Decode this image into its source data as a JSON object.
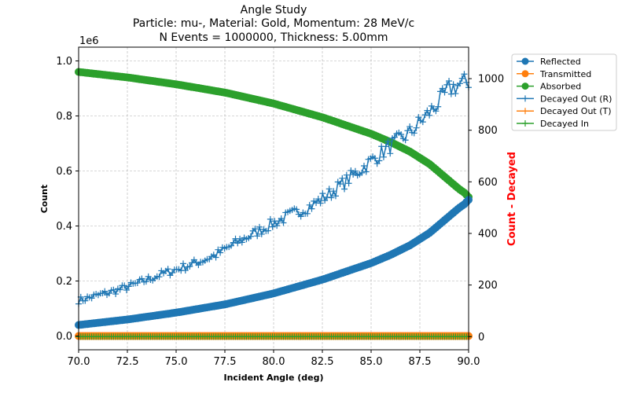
{
  "chart_data": {
    "type": "line",
    "title": "Angle Study",
    "subtitle_lines": [
      "Particle: mu-, Material: Gold, Momentum: 28 MeV/c",
      "N Events = 1000000, Thickness: 5.00mm"
    ],
    "xlabel": "Incident Angle (deg)",
    "ylabel": "Count",
    "y2label": "Count - Decayed",
    "y_offset_text": "1e6",
    "xlim": [
      70.0,
      90.0
    ],
    "ylim": [
      -0.05,
      1.05
    ],
    "y2lim": [
      -51,
      1122
    ],
    "x_ticks": [
      "70.0",
      "72.5",
      "75.0",
      "77.5",
      "80.0",
      "82.5",
      "85.0",
      "87.5",
      "90.0"
    ],
    "y_ticks": [
      "0.0",
      "0.2",
      "0.4",
      "0.6",
      "0.8",
      "1.0"
    ],
    "y2_ticks": [
      "0",
      "200",
      "400",
      "600",
      "800",
      "1000"
    ],
    "grid": true,
    "legend_position": "right, outside",
    "colors": {
      "reflected": "#1f77b4",
      "transmitted": "#ff7f0e",
      "absorbed": "#2ca02c",
      "y2label": "#ff0000"
    },
    "series": [
      {
        "name": "Reflected",
        "axis": "left",
        "marker": "circle",
        "color": "#1f77b4",
        "x": [
          70.0,
          72.5,
          75.0,
          77.5,
          80.0,
          82.5,
          85.0,
          86.0,
          87.0,
          88.0,
          88.5,
          89.0,
          89.5,
          89.8,
          90.0
        ],
        "y": [
          0.04,
          0.06,
          0.085,
          0.115,
          0.155,
          0.205,
          0.265,
          0.295,
          0.33,
          0.375,
          0.405,
          0.435,
          0.465,
          0.48,
          0.495
        ]
      },
      {
        "name": "Transmitted",
        "axis": "left",
        "marker": "circle",
        "color": "#ff7f0e",
        "x": [
          70.0,
          90.0
        ],
        "y": [
          0.0,
          0.0
        ]
      },
      {
        "name": "Absorbed",
        "axis": "left",
        "marker": "circle",
        "color": "#2ca02c",
        "x": [
          70.0,
          72.5,
          75.0,
          77.5,
          80.0,
          82.5,
          85.0,
          86.0,
          87.0,
          88.0,
          88.5,
          89.0,
          89.5,
          89.8,
          90.0
        ],
        "y": [
          0.96,
          0.94,
          0.915,
          0.885,
          0.845,
          0.795,
          0.735,
          0.705,
          0.67,
          0.625,
          0.595,
          0.565,
          0.535,
          0.52,
          0.505
        ]
      },
      {
        "name": "Decayed Out (R)",
        "axis": "right",
        "marker": "plus",
        "color": "#1f77b4",
        "x": [
          70.0,
          71.0,
          72.0,
          73.0,
          74.0,
          75.0,
          76.0,
          77.0,
          78.0,
          79.0,
          80.0,
          81.0,
          82.0,
          83.0,
          84.0,
          85.0,
          86.0,
          87.0,
          88.0,
          88.5,
          89.0,
          89.5,
          90.0
        ],
        "y": [
          140,
          160,
          180,
          205,
          235,
          260,
          285,
          315,
          360,
          400,
          440,
          475,
          510,
          560,
          620,
          680,
          740,
          790,
          870,
          910,
          960,
          975,
          990
        ]
      },
      {
        "name": "Decayed Out (T)",
        "axis": "right",
        "marker": "plus",
        "color": "#ff7f0e",
        "x": [
          70.0,
          90.0
        ],
        "y": [
          0,
          0
        ]
      },
      {
        "name": "Decayed In",
        "axis": "right",
        "marker": "plus",
        "color": "#2ca02c",
        "x": [
          70.0,
          90.0
        ],
        "y": [
          0,
          0
        ]
      }
    ]
  }
}
